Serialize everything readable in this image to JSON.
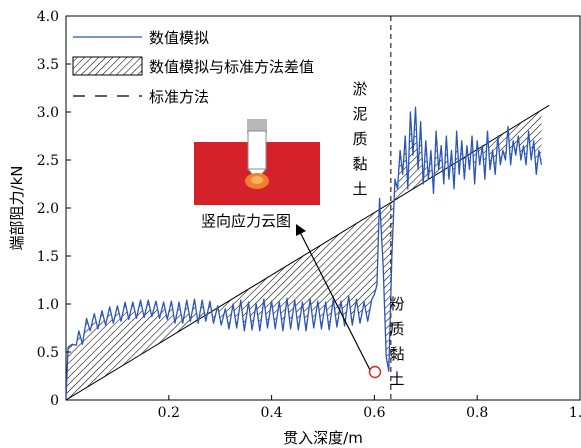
{
  "chart_data": {
    "type": "line",
    "xlabel": "贯入深度/m",
    "ylabel": "端部阻力/kN",
    "xlim": [
      0,
      1.0
    ],
    "ylim": [
      0,
      4.0
    ],
    "x_ticks": [
      "0.2",
      "0.4",
      "0.6",
      "0.8",
      "1.0"
    ],
    "y_ticks": [
      "0",
      "0.5",
      "1.0",
      "1.5",
      "2.0",
      "2.5",
      "3.0",
      "3.5",
      "4.0"
    ],
    "grid": false,
    "legend_position": "top-left",
    "legend": {
      "numerical": "数值模拟",
      "hatched": "数值模拟与标准方法差值",
      "standard": "标准方法"
    },
    "series": [
      {
        "name": "数值模拟",
        "color": "#2a55b8",
        "x": [
          0.0,
          0.004,
          0.012,
          0.02,
          0.025,
          0.032,
          0.04,
          0.047,
          0.055,
          0.062,
          0.07,
          0.077,
          0.085,
          0.092,
          0.1,
          0.107,
          0.115,
          0.122,
          0.13,
          0.137,
          0.145,
          0.152,
          0.16,
          0.167,
          0.175,
          0.182,
          0.19,
          0.197,
          0.205,
          0.212,
          0.22,
          0.227,
          0.235,
          0.242,
          0.25,
          0.257,
          0.265,
          0.272,
          0.28,
          0.287,
          0.295,
          0.302,
          0.31,
          0.317,
          0.325,
          0.332,
          0.34,
          0.347,
          0.355,
          0.362,
          0.37,
          0.377,
          0.385,
          0.392,
          0.4,
          0.407,
          0.415,
          0.422,
          0.43,
          0.437,
          0.445,
          0.452,
          0.46,
          0.467,
          0.475,
          0.482,
          0.49,
          0.497,
          0.505,
          0.512,
          0.52,
          0.527,
          0.535,
          0.542,
          0.55,
          0.557,
          0.565,
          0.572,
          0.58,
          0.587,
          0.595,
          0.6,
          0.605,
          0.61,
          0.617,
          0.623,
          0.628,
          0.634,
          0.64,
          0.645,
          0.65,
          0.655,
          0.66,
          0.665,
          0.67,
          0.675,
          0.68,
          0.685,
          0.69,
          0.695,
          0.7,
          0.705,
          0.71,
          0.715,
          0.72,
          0.725,
          0.73,
          0.735,
          0.74,
          0.745,
          0.75,
          0.755,
          0.76,
          0.765,
          0.77,
          0.775,
          0.78,
          0.785,
          0.79,
          0.795,
          0.8,
          0.805,
          0.81,
          0.815,
          0.82,
          0.825,
          0.83,
          0.835,
          0.84,
          0.845,
          0.85,
          0.855,
          0.86,
          0.865,
          0.87,
          0.875,
          0.88,
          0.885,
          0.89,
          0.895,
          0.9,
          0.905,
          0.91,
          0.915,
          0.92,
          0.925
        ],
        "y": [
          0.0,
          0.55,
          0.58,
          0.57,
          0.72,
          0.58,
          0.85,
          0.72,
          0.9,
          0.74,
          0.93,
          0.78,
          0.97,
          0.8,
          0.98,
          0.82,
          1.02,
          0.84,
          1.02,
          0.85,
          1.04,
          0.86,
          1.04,
          0.87,
          1.03,
          0.85,
          1.02,
          0.84,
          1.03,
          0.8,
          1.02,
          0.8,
          1.04,
          0.82,
          1.05,
          0.8,
          1.04,
          0.82,
          1.03,
          0.8,
          0.98,
          0.78,
          0.95,
          0.74,
          1.0,
          0.75,
          1.04,
          0.72,
          1.02,
          0.73,
          1.0,
          0.72,
          1.05,
          0.75,
          1.03,
          0.74,
          1.02,
          0.72,
          1.06,
          0.74,
          1.04,
          0.73,
          1.02,
          0.72,
          1.05,
          0.75,
          1.03,
          0.74,
          1.02,
          0.73,
          1.05,
          0.76,
          1.03,
          0.77,
          1.08,
          0.78,
          1.05,
          0.8,
          1.02,
          0.82,
          1.05,
          1.1,
          1.2,
          2.1,
          1.4,
          0.45,
          0.3,
          1.5,
          2.3,
          2.2,
          2.6,
          2.35,
          2.75,
          2.2,
          3.0,
          2.55,
          3.05,
          2.4,
          2.9,
          2.25,
          2.7,
          2.3,
          2.6,
          2.15,
          2.8,
          2.4,
          2.65,
          2.25,
          2.75,
          2.3,
          2.6,
          2.2,
          2.8,
          2.35,
          2.7,
          2.3,
          2.65,
          2.4,
          2.75,
          2.25,
          2.7,
          2.45,
          2.65,
          2.3,
          2.8,
          2.4,
          2.6,
          2.35,
          2.75,
          2.45,
          2.6,
          2.5,
          2.85,
          2.45,
          2.7,
          2.55,
          2.75,
          2.5,
          2.65,
          2.45,
          2.8,
          2.5,
          2.7,
          2.35,
          2.6,
          2.45
        ],
        "style": "solid"
      },
      {
        "name": "标准方法",
        "color": "#000000",
        "x": [
          0.0,
          0.63,
          0.94
        ],
        "y": [
          0.0,
          2.05,
          3.07
        ],
        "style": "solid"
      }
    ],
    "vertical_marker": {
      "x": 0.632,
      "style": "dashed"
    },
    "annotations": {
      "upper_soil": "淤泥质黏土",
      "lower_soil": "粉质黏土",
      "inset_caption": "竖向应力云图"
    }
  },
  "colors": {
    "axis": "#000000",
    "series_blue": "#2a55b8",
    "hatch": "#000000",
    "marker_circle": "#e02020",
    "inset_red": "#d4212a",
    "inset_orange": "#f08030",
    "inset_grey": "#b8b8b8"
  }
}
